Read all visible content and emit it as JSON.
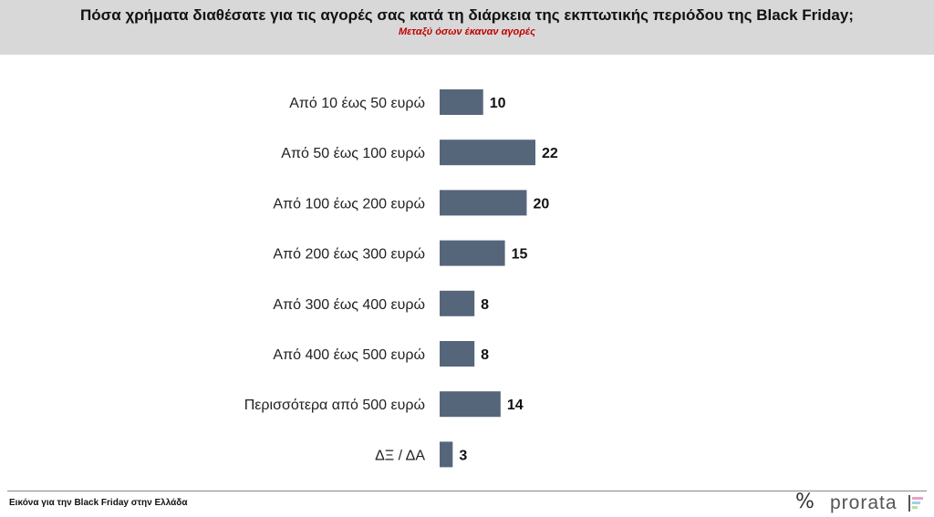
{
  "header": {
    "title": "Πόσα χρήματα διαθέσατε για τις αγορές σας κατά τη διάρκεια της εκπτωτικής περιόδου της Black Friday;",
    "subtitle": "Μεταξύ όσων έκαναν αγορές"
  },
  "footer": {
    "caption": "Εικόνα για την Black Friday στην Ελλάδα",
    "logo_text": "prorata",
    "logo_symbol": "%"
  },
  "colors": {
    "bar": "#56667a",
    "header_bg": "#d8d8d8",
    "subtitle": "#c00000"
  },
  "chart_data": {
    "type": "bar",
    "orientation": "horizontal",
    "categories": [
      "Από 10 έως 50 ευρώ",
      "Από 50 έως 100 ευρώ",
      "Από 100 έως 200 ευρώ",
      "Από 200 έως 300 ευρώ",
      "Από 300 έως 400 ευρώ",
      "Από 400 έως 500 ευρώ",
      "Περισσότερα από 500 ευρώ",
      "ΔΞ / ΔΑ"
    ],
    "values": [
      10,
      22,
      20,
      15,
      8,
      8,
      14,
      3
    ],
    "title": "Πόσα χρήματα διαθέσατε για τις αγορές σας κατά τη διάρκεια της εκπτωτικής περιόδου της Black Friday;",
    "subtitle": "Μεταξύ όσων έκαναν αγορές",
    "xlabel": "",
    "ylabel": "",
    "xlim": [
      0,
      22
    ],
    "grid": false,
    "legend": "none"
  }
}
